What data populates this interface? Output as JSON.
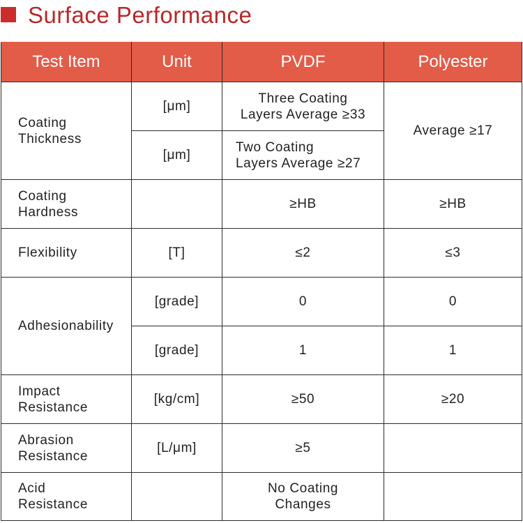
{
  "header": {
    "title": "Surface Performance"
  },
  "table": {
    "columns": [
      "Test Item",
      "Unit",
      "PVDF",
      "Polyester"
    ],
    "rows": {
      "thickness": {
        "item": "Coating\nThickness",
        "unit_1": "[μm]",
        "pvdf_1": "Three Coating\nLayers Average ≥33",
        "unit_2": "[μm]",
        "pvdf_2": "Two Coating\nLayers Average ≥27",
        "polyester": "Average ≥17"
      },
      "hardness": {
        "item": "Coating\nHardness",
        "unit": "",
        "pvdf": "≥HB",
        "polyester": "≥HB"
      },
      "flexibility": {
        "item": "Flexibility",
        "unit": "[T]",
        "pvdf": "≤2",
        "polyester": "≤3"
      },
      "adhesion": {
        "item": "Adhesionability",
        "unit_1": "[grade]",
        "pvdf_1": "0",
        "polyester_1": "0",
        "unit_2": "[grade]",
        "pvdf_2": "1",
        "polyester_2": "1"
      },
      "impact": {
        "item": "Impact\nResistance",
        "unit": "[kg/cm]",
        "pvdf": "≥50",
        "polyester": "≥20"
      },
      "abrasion": {
        "item": "Abrasion\nResistance",
        "unit": "[L/μm]",
        "pvdf": "≥5",
        "polyester": ""
      },
      "acid": {
        "item": "Acid\nResistance",
        "unit": "",
        "pvdf": "No Coating\nChanges",
        "polyester": ""
      }
    }
  },
  "colors": {
    "title": "#b8282a",
    "square": "#cc2c2c",
    "header_bg": "#e25c48",
    "header_text": "#ffffff",
    "border": "#2b2b2b"
  }
}
